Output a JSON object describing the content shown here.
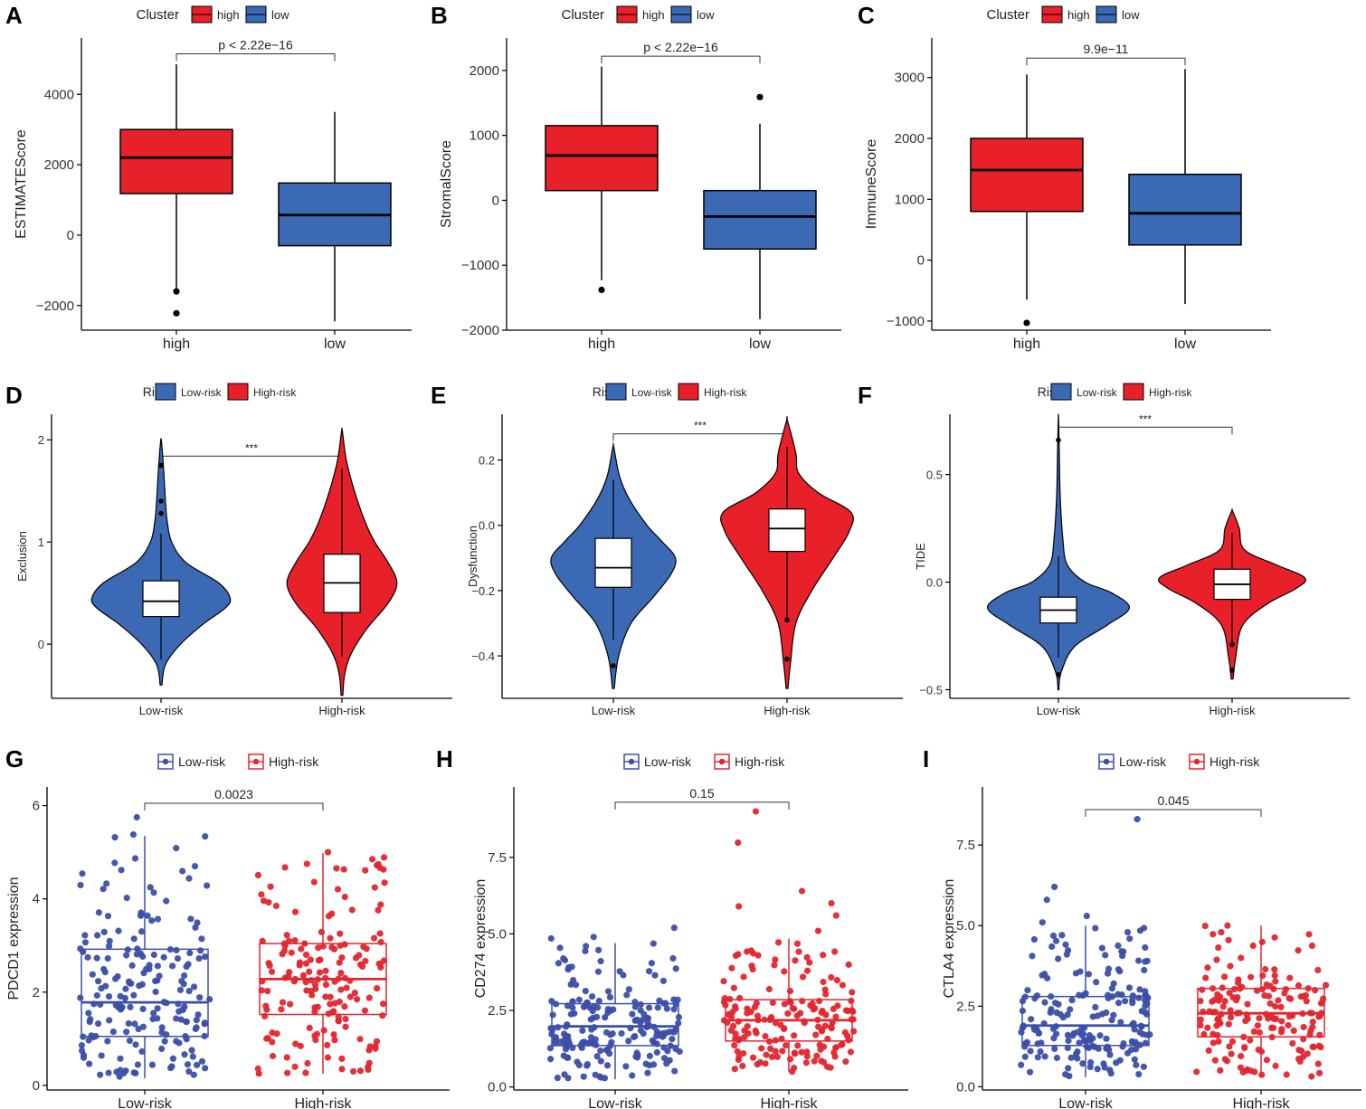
{
  "colors": {
    "high_red": "#e8202a",
    "low_blue": "#3b69b3",
    "g_blue": "#3c4fa8",
    "g_red": "#e3262e",
    "axis": "#000000",
    "box_white": "#ffffff"
  },
  "chart_data": [
    {
      "panel": "A",
      "type": "boxplot",
      "legend": {
        "title": "Cluster",
        "entries": [
          "high",
          "low"
        ]
      },
      "categories": [
        "high",
        "low"
      ],
      "ylabel": "ESTIMATEScore",
      "ylim": [
        -2700,
        5600
      ],
      "yticks": [
        -2000,
        0,
        2000,
        4000
      ],
      "yticklabels": [
        "−2000",
        "0",
        "2000",
        "4000"
      ],
      "boxes": [
        {
          "whisker_low": -1600,
          "q1": 1180,
          "median": 2200,
          "q3": 3000,
          "whisker_high": 4850,
          "outliers": [
            -1600,
            -2220
          ]
        },
        {
          "whisker_low": -2450,
          "q1": -300,
          "median": 570,
          "q3": 1480,
          "whisker_high": 3500,
          "outliers": []
        }
      ],
      "bracket": {
        "label": "p < 2.22e−16",
        "y": 5150
      }
    },
    {
      "panel": "B",
      "type": "boxplot",
      "legend": {
        "title": "Cluster",
        "entries": [
          "high",
          "low"
        ]
      },
      "categories": [
        "high",
        "low"
      ],
      "ylabel": "StromalScore",
      "ylim": [
        -2000,
        2500
      ],
      "yticks": [
        -2000,
        -1000,
        0,
        1000,
        2000
      ],
      "yticklabels": [
        "−2000",
        "−1000",
        "0",
        "1000",
        "2000"
      ],
      "boxes": [
        {
          "whisker_low": -1230,
          "q1": 150,
          "median": 690,
          "q3": 1150,
          "whisker_high": 2060,
          "outliers": [
            -1380
          ]
        },
        {
          "whisker_low": -1830,
          "q1": -750,
          "median": -250,
          "q3": 150,
          "whisker_high": 1180,
          "outliers": [
            1590
          ]
        }
      ],
      "bracket": {
        "label": "p < 2.22e−16",
        "y": 2220
      }
    },
    {
      "panel": "C",
      "type": "boxplot",
      "legend": {
        "title": "Cluster",
        "entries": [
          "high",
          "low"
        ]
      },
      "categories": [
        "high",
        "low"
      ],
      "ylabel": "ImmuneScore",
      "ylim": [
        -1150,
        3650
      ],
      "yticks": [
        -1000,
        0,
        1000,
        2000,
        3000
      ],
      "yticklabels": [
        "−1000",
        "0",
        "1000",
        "2000",
        "3000"
      ],
      "boxes": [
        {
          "whisker_low": -650,
          "q1": 800,
          "median": 1480,
          "q3": 2000,
          "whisker_high": 3050,
          "outliers": [
            -1030
          ]
        },
        {
          "whisker_low": -720,
          "q1": 250,
          "median": 770,
          "q3": 1410,
          "whisker_high": 3140,
          "outliers": []
        }
      ],
      "bracket": {
        "label": "9.9e−11",
        "y": 3320
      }
    },
    {
      "panel": "D",
      "type": "violin",
      "legend": {
        "title": "Risk",
        "entries": [
          "Low-risk",
          "High-risk"
        ]
      },
      "categories": [
        "Low-risk",
        "High-risk"
      ],
      "ylabel": "Exclusion",
      "ylim": [
        -0.53,
        2.25
      ],
      "yticks": [
        0,
        1,
        2
      ],
      "yticklabels": [
        "0",
        "1",
        "2"
      ],
      "violins": [
        {
          "min": -0.4,
          "max": 1.98,
          "profile": [
            [
              -0.4,
              0.01
            ],
            [
              -0.2,
              0.05
            ],
            [
              0,
              0.22
            ],
            [
              0.2,
              0.48
            ],
            [
              0.35,
              0.72
            ],
            [
              0.45,
              0.78
            ],
            [
              0.6,
              0.65
            ],
            [
              0.8,
              0.28
            ],
            [
              1.0,
              0.12
            ],
            [
              1.2,
              0.07
            ],
            [
              1.4,
              0.05
            ],
            [
              1.7,
              0.03
            ],
            [
              1.98,
              0.005
            ]
          ],
          "q1": 0.27,
          "median": 0.42,
          "q3": 0.62,
          "whisker_low": -0.15,
          "whisker_high": 1.08,
          "outliers": [
            1.28,
            1.4,
            1.75
          ]
        },
        {
          "min": -0.5,
          "max": 2.08,
          "profile": [
            [
              -0.5,
              0.01
            ],
            [
              -0.3,
              0.03
            ],
            [
              -0.1,
              0.1
            ],
            [
              0.15,
              0.28
            ],
            [
              0.4,
              0.52
            ],
            [
              0.6,
              0.62
            ],
            [
              0.8,
              0.52
            ],
            [
              1.0,
              0.37
            ],
            [
              1.2,
              0.26
            ],
            [
              1.5,
              0.14
            ],
            [
              1.8,
              0.05
            ],
            [
              2.08,
              0.005
            ]
          ],
          "q1": 0.31,
          "median": 0.6,
          "q3": 0.88,
          "whisker_low": -0.12,
          "whisker_high": 1.72,
          "outliers": []
        }
      ],
      "bracket": {
        "label": "***",
        "y": 1.84
      }
    },
    {
      "panel": "E",
      "type": "violin",
      "legend": {
        "title": "Risk",
        "entries": [
          "Low-risk",
          "High-risk"
        ]
      },
      "categories": [
        "Low-risk",
        "High-risk"
      ],
      "ylabel": "Dysfunction",
      "ylim": [
        -0.53,
        0.34
      ],
      "yticks": [
        -0.4,
        -0.2,
        0.0,
        0.2
      ],
      "yticklabels": [
        "−0.4",
        "−0.2",
        "0.0",
        "0.2"
      ],
      "violins": [
        {
          "min": -0.5,
          "max": 0.24,
          "profile": [
            [
              -0.5,
              0.01
            ],
            [
              -0.4,
              0.06
            ],
            [
              -0.3,
              0.2
            ],
            [
              -0.22,
              0.45
            ],
            [
              -0.15,
              0.65
            ],
            [
              -0.1,
              0.7
            ],
            [
              -0.05,
              0.55
            ],
            [
              0.0,
              0.38
            ],
            [
              0.08,
              0.18
            ],
            [
              0.15,
              0.07
            ],
            [
              0.24,
              0.005
            ]
          ],
          "q1": -0.19,
          "median": -0.13,
          "q3": -0.04,
          "whisker_low": -0.35,
          "whisker_high": 0.14,
          "outliers": [
            -0.43
          ]
        },
        {
          "min": -0.5,
          "max": 0.32,
          "profile": [
            [
              -0.5,
              0.01
            ],
            [
              -0.42,
              0.04
            ],
            [
              -0.3,
              0.1
            ],
            [
              -0.2,
              0.28
            ],
            [
              -0.1,
              0.52
            ],
            [
              -0.02,
              0.7
            ],
            [
              0.04,
              0.72
            ],
            [
              0.1,
              0.35
            ],
            [
              0.16,
              0.13
            ],
            [
              0.22,
              0.1
            ],
            [
              0.32,
              0.005
            ]
          ],
          "q1": -0.08,
          "median": -0.01,
          "q3": 0.05,
          "whisker_low": -0.29,
          "whisker_high": 0.24,
          "outliers": [
            -0.29,
            -0.41
          ]
        }
      ],
      "bracket": {
        "label": "***",
        "y": 0.28
      }
    },
    {
      "panel": "F",
      "type": "violin",
      "legend": {
        "title": "Risk",
        "entries": [
          "Low-risk",
          "High-risk"
        ]
      },
      "categories": [
        "Low-risk",
        "High-risk"
      ],
      "ylabel": "TIDE",
      "ylim": [
        -0.54,
        0.78
      ],
      "yticks": [
        -0.5,
        0.0,
        0.5
      ],
      "yticklabels": [
        "−0.5",
        "0.0",
        "0.5"
      ],
      "violins": [
        {
          "min": -0.5,
          "max": 0.76,
          "profile": [
            [
              -0.5,
              0.005
            ],
            [
              -0.42,
              0.03
            ],
            [
              -0.3,
              0.18
            ],
            [
              -0.2,
              0.55
            ],
            [
              -0.12,
              0.8
            ],
            [
              -0.05,
              0.6
            ],
            [
              0.0,
              0.3
            ],
            [
              0.08,
              0.1
            ],
            [
              0.2,
              0.05
            ],
            [
              0.4,
              0.02
            ],
            [
              0.6,
              0.01
            ],
            [
              0.76,
              0.002
            ]
          ],
          "q1": -0.19,
          "median": -0.13,
          "q3": -0.07,
          "whisker_low": -0.35,
          "whisker_high": 0.12,
          "outliers": [
            -0.43,
            0.66
          ]
        },
        {
          "min": -0.45,
          "max": 0.33,
          "profile": [
            [
              -0.45,
              0.01
            ],
            [
              -0.35,
              0.04
            ],
            [
              -0.2,
              0.12
            ],
            [
              -0.1,
              0.4
            ],
            [
              -0.03,
              0.72
            ],
            [
              0.02,
              0.82
            ],
            [
              0.08,
              0.5
            ],
            [
              0.15,
              0.14
            ],
            [
              0.25,
              0.08
            ],
            [
              0.33,
              0.005
            ]
          ],
          "q1": -0.08,
          "median": -0.01,
          "q3": 0.06,
          "whisker_low": -0.28,
          "whisker_high": 0.23,
          "outliers": [
            -0.29,
            -0.41
          ]
        }
      ],
      "bracket": {
        "label": "***",
        "y": 0.72
      }
    },
    {
      "panel": "G",
      "type": "boxplot_jitter",
      "legend": {
        "entries": [
          "Low-risk",
          "High-risk"
        ]
      },
      "categories": [
        "Low-risk",
        "High-risk"
      ],
      "ylabel": "PDCD1 expression",
      "ylim": [
        -0.1,
        6.4
      ],
      "yticks": [
        0,
        2,
        4,
        6
      ],
      "yticklabels": [
        "0",
        "2",
        "4",
        "6"
      ],
      "boxes": [
        {
          "whisker_low": 0.15,
          "q1": 1.05,
          "median": 1.78,
          "q3": 2.92,
          "whisker_high": 5.35,
          "extremes": [
            5.75,
            5.38,
            5.32
          ],
          "n": 190
        },
        {
          "whisker_low": 0.25,
          "q1": 1.52,
          "median": 2.28,
          "q3": 3.04,
          "whisker_high": 4.98,
          "extremes": [
            5.0,
            4.85
          ],
          "n": 170
        }
      ],
      "bracket": {
        "label": "0.0023",
        "y": 6.05
      }
    },
    {
      "panel": "H",
      "type": "boxplot_jitter",
      "legend": {
        "entries": [
          "Low-risk",
          "High-risk"
        ]
      },
      "categories": [
        "Low-risk",
        "High-risk"
      ],
      "ylabel": "CD274 expression",
      "ylim": [
        -0.1,
        9.8
      ],
      "yticks": [
        0.0,
        2.5,
        5.0,
        7.5
      ],
      "yticklabels": [
        "0.0",
        "2.5",
        "5.0",
        "7.5"
      ],
      "boxes": [
        {
          "whisker_low": 0.25,
          "q1": 1.35,
          "median": 1.98,
          "q3": 2.72,
          "whisker_high": 4.7,
          "extremes": [
            5.2,
            4.9,
            4.85
          ],
          "n": 190
        },
        {
          "whisker_low": 0.5,
          "q1": 1.5,
          "median": 2.18,
          "q3": 2.85,
          "whisker_high": 4.85,
          "extremes": [
            9.0,
            7.98,
            6.4,
            6.0,
            5.9,
            5.6,
            5.1
          ],
          "n": 170
        }
      ],
      "bracket": {
        "label": "0.15",
        "y": 9.3
      }
    },
    {
      "panel": "I",
      "type": "boxplot_jitter",
      "legend": {
        "entries": [
          "Low-risk",
          "High-risk"
        ]
      },
      "categories": [
        "Low-risk",
        "High-risk"
      ],
      "ylabel": "CTLA4 expression",
      "ylim": [
        -0.1,
        9.3
      ],
      "yticks": [
        0.0,
        2.5,
        5.0,
        7.5
      ],
      "yticklabels": [
        "0.0",
        "2.5",
        "5.0",
        "7.5"
      ],
      "boxes": [
        {
          "whisker_low": 0.3,
          "q1": 1.28,
          "median": 1.9,
          "q3": 2.8,
          "whisker_high": 5.0,
          "extremes": [
            8.3,
            6.2,
            5.8,
            5.3,
            5.1
          ],
          "n": 190
        },
        {
          "whisker_low": 0.3,
          "q1": 1.55,
          "median": 2.28,
          "q3": 3.05,
          "whisker_high": 5.0,
          "extremes": [
            5.0
          ],
          "n": 170
        }
      ],
      "bracket": {
        "label": "0.045",
        "y": 8.6
      }
    }
  ]
}
